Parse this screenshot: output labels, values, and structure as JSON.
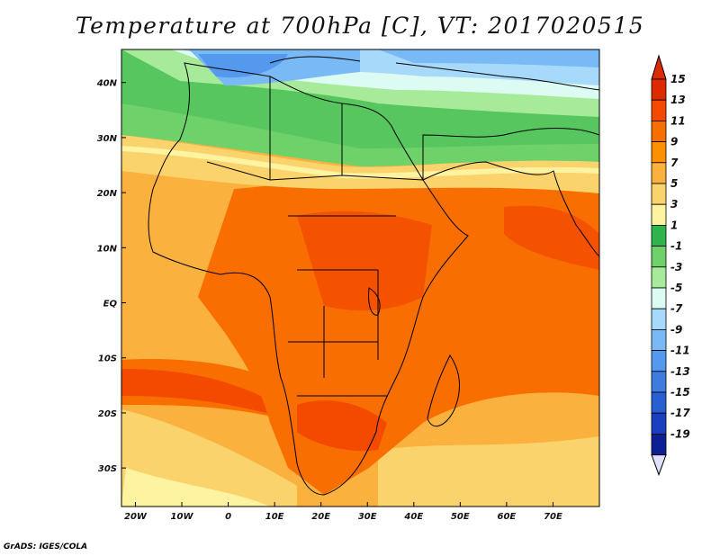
{
  "title": "Temperature at 700hPa [C], VT: 2017020515",
  "footer": "GrADS: IGES/COLA",
  "map": {
    "lon_range": [
      -23,
      80
    ],
    "lat_range": [
      -37,
      46
    ],
    "lon_ticks": [
      {
        "value": -20,
        "label": "20W"
      },
      {
        "value": -10,
        "label": "10W"
      },
      {
        "value": 0,
        "label": "0"
      },
      {
        "value": 10,
        "label": "10E"
      },
      {
        "value": 20,
        "label": "20E"
      },
      {
        "value": 30,
        "label": "30E"
      },
      {
        "value": 40,
        "label": "40E"
      },
      {
        "value": 50,
        "label": "50E"
      },
      {
        "value": 60,
        "label": "60E"
      },
      {
        "value": 70,
        "label": "70E"
      }
    ],
    "lat_ticks": [
      {
        "value": 40,
        "label": "40N"
      },
      {
        "value": 30,
        "label": "30N"
      },
      {
        "value": 20,
        "label": "20N"
      },
      {
        "value": 10,
        "label": "10N"
      },
      {
        "value": 0,
        "label": "EQ"
      },
      {
        "value": -10,
        "label": "10S"
      },
      {
        "value": -20,
        "label": "20S"
      },
      {
        "value": -30,
        "label": "30S"
      }
    ]
  },
  "colorbar": {
    "levels": [
      "15",
      "13",
      "11",
      "9",
      "7",
      "5",
      "3",
      "1",
      "-1",
      "-3",
      "-5",
      "-7",
      "-9",
      "-11",
      "-13",
      "-15",
      "-17",
      "-19"
    ],
    "colors": [
      "#dd2a00",
      "#f34a00",
      "#f96e00",
      "#fc9000",
      "#fbb13e",
      "#fbd36c",
      "#fdf3a0",
      "#2fb34b",
      "#6ed169",
      "#a6ea9a",
      "#dcfbf2",
      "#a7d9fb",
      "#79b9f6",
      "#5599ee",
      "#3f7ce0",
      "#2a5fd3",
      "#1a40c0",
      "#0e1f96"
    ],
    "top_color": "#dd2a00",
    "bottom_color": "#e0e0ff"
  }
}
